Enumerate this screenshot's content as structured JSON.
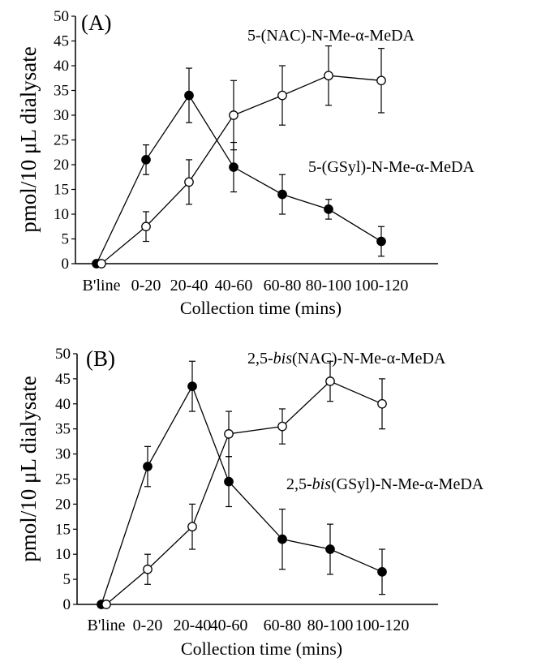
{
  "chart_data": [
    {
      "type": "line",
      "panel_label": "(A)",
      "categories": [
        "B'line",
        "0-20",
        "20-40",
        "40-60",
        "60-80",
        "80-100",
        "100-120"
      ],
      "xlabel": "Collection time (mins)",
      "ylabel": "pmol/10 μL dialysate",
      "ylim": [
        0,
        50
      ],
      "yticks": [
        "0",
        "5",
        "10",
        "15",
        "20",
        "25",
        "30",
        "35",
        "40",
        "45",
        "50"
      ],
      "grid": false,
      "series": [
        {
          "name": "5-(GSyl)-N-Me-α-MeDA",
          "marker": "filled",
          "values": [
            0,
            21,
            34,
            19.5,
            14,
            11,
            4.5
          ],
          "errors": [
            0,
            3,
            5.5,
            5,
            4,
            2,
            3
          ]
        },
        {
          "name": "5-(NAC)-N-Me-α-MeDA",
          "marker": "open",
          "values": [
            0,
            7.5,
            16.5,
            30,
            34,
            38,
            37
          ],
          "errors": [
            0,
            3,
            4.5,
            7,
            6,
            6,
            6.5
          ]
        }
      ]
    },
    {
      "type": "line",
      "panel_label": "(B)",
      "categories": [
        "B'line",
        "0-20",
        "20-40",
        "40-60",
        "60-80",
        "80-100",
        "100-120"
      ],
      "xlabel": "Collection time (mins)",
      "ylabel": "pmol/10 μL dialysate",
      "ylim": [
        0,
        50
      ],
      "yticks": [
        "0",
        "5",
        "10",
        "15",
        "20",
        "25",
        "30",
        "35",
        "40",
        "45",
        "50"
      ],
      "grid": false,
      "series": [
        {
          "name": "2,5-bis(GSyl)-N-Me-α-MeDA",
          "marker": "filled",
          "values": [
            0,
            27.5,
            43.5,
            24.5,
            13,
            11,
            6.5
          ],
          "errors": [
            0,
            4,
            5,
            5,
            6,
            5,
            4.5
          ]
        },
        {
          "name": "2,5-bis(NAC)-N-Me-α-MeDA",
          "marker": "open",
          "values": [
            0,
            7,
            15.5,
            34,
            35.5,
            44.5,
            40
          ],
          "errors": [
            0,
            3,
            4.5,
            4.5,
            3.5,
            4,
            5
          ]
        }
      ]
    }
  ]
}
